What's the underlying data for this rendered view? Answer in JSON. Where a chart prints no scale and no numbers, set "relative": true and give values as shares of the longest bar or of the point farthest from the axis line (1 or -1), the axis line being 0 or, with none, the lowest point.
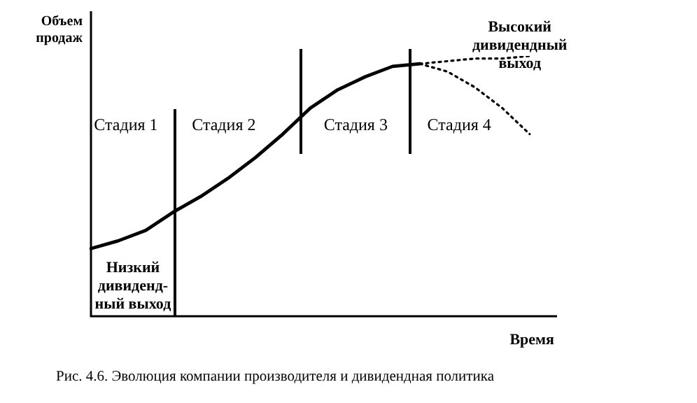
{
  "chart_data": {
    "type": "line",
    "relative": true,
    "title": "Рис. 4.6. Эволюция компании производителя и дивидендная политика",
    "xlabel": "Время",
    "ylabel": "Объем продаж",
    "categories": [
      null,
      null,
      null,
      null,
      null,
      null,
      null,
      null,
      null,
      null,
      null,
      null,
      null,
      null,
      null,
      null,
      null,
      null
    ],
    "series": [
      {
        "color": "#000000",
        "line_style": "solid",
        "values": [
          0.26,
          0.29,
          0.33,
          0.4,
          0.46,
          0.53,
          0.61,
          0.7,
          0.8,
          0.87,
          0.92,
          0.96,
          0.97,
          null,
          null,
          null,
          null,
          null
        ]
      },
      {
        "color": "#000000",
        "line_style": "dotted",
        "values": [
          null,
          null,
          null,
          null,
          null,
          null,
          null,
          null,
          null,
          null,
          null,
          null,
          0.97,
          0.98,
          0.99,
          0.99,
          1.0,
          null
        ]
      },
      {
        "color": "#000000",
        "line_style": "dotted",
        "values": [
          null,
          null,
          null,
          null,
          null,
          null,
          null,
          null,
          null,
          null,
          null,
          null,
          0.97,
          0.94,
          0.88,
          0.8,
          0.7,
          null
        ]
      }
    ],
    "annotations": [
      "Стадия 1",
      "Стадия 2",
      "Стадия 3",
      "Стадия 4",
      "Низкий\nдивиденд-\nный выход",
      "Высокий\nдивидендный\nвыход"
    ]
  }
}
